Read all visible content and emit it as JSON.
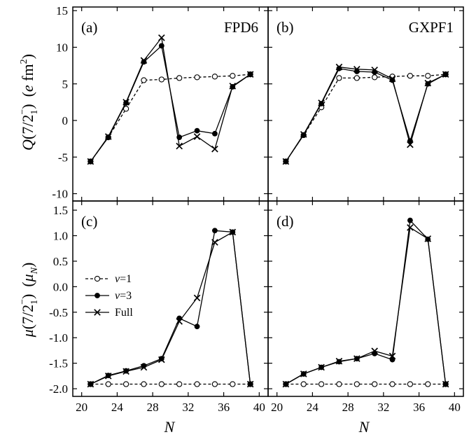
{
  "x_axis_label": "N",
  "x_ticks": [
    "20",
    "24",
    "28",
    "32",
    "36",
    "40"
  ],
  "legend": {
    "v1_var": "v",
    "v1_val": "=1",
    "v3_var": "v",
    "v3_val": "=3",
    "full": "Full"
  },
  "top_ylabel": {
    "sym": "Q",
    "paren_open": "(7/2",
    "sub": "1",
    "sup": "−",
    "paren_close": ")",
    "unit_open": "(",
    "unit_e": "e",
    "unit_fm": " fm",
    "unit_sq": "2",
    "unit_close": ")"
  },
  "bottom_ylabel": {
    "sym": "μ",
    "paren_open": "(7/2",
    "sub": "1",
    "sup": "−",
    "paren_close": ")",
    "unit_open": "(",
    "unit_mu": "μ",
    "unit_N": "N",
    "unit_close": ")"
  },
  "chart_data": [
    {
      "type": "line",
      "panel": "(a)",
      "model": "FPD6",
      "xlim": [
        19,
        41
      ],
      "ylim": [
        -11,
        15.5
      ],
      "y_ticks": [
        "15",
        "10",
        "5",
        "0",
        "-5",
        "-10"
      ],
      "series": [
        {
          "name": "v=1",
          "x": [
            21,
            23,
            25,
            27,
            29,
            31,
            33,
            35,
            37,
            39
          ],
          "values": [
            -5.6,
            -2.3,
            1.6,
            5.5,
            5.6,
            5.8,
            5.9,
            6.0,
            6.1,
            6.3
          ]
        },
        {
          "name": "v=3",
          "x": [
            21,
            23,
            25,
            27,
            29,
            31,
            33,
            35,
            37,
            39
          ],
          "values": [
            -5.6,
            -2.3,
            2.4,
            8.0,
            10.2,
            -2.3,
            -1.4,
            -1.8,
            4.6,
            6.3
          ]
        },
        {
          "name": "Full",
          "x": [
            21,
            23,
            25,
            27,
            29,
            31,
            33,
            35,
            37,
            39
          ],
          "values": [
            -5.6,
            -2.2,
            2.5,
            8.2,
            11.3,
            -3.5,
            -2.2,
            -3.9,
            4.7,
            6.3
          ]
        }
      ]
    },
    {
      "type": "line",
      "panel": "(b)",
      "model": "GXPF1",
      "xlim": [
        19,
        41
      ],
      "ylim": [
        -11,
        15.5
      ],
      "series": [
        {
          "name": "v=1",
          "x": [
            21,
            23,
            25,
            27,
            29,
            31,
            33,
            35,
            37,
            39
          ],
          "values": [
            -5.6,
            -2.0,
            1.8,
            5.8,
            5.8,
            5.9,
            6.0,
            6.1,
            6.1,
            6.3
          ]
        },
        {
          "name": "v=3",
          "x": [
            21,
            23,
            25,
            27,
            29,
            31,
            33,
            35,
            37,
            39
          ],
          "values": [
            -5.6,
            -2.0,
            2.3,
            7.1,
            6.7,
            6.6,
            5.5,
            -2.8,
            5.0,
            6.3
          ]
        },
        {
          "name": "Full",
          "x": [
            21,
            23,
            25,
            27,
            29,
            31,
            33,
            35,
            37,
            39
          ],
          "values": [
            -5.6,
            -1.9,
            2.4,
            7.3,
            7.0,
            6.9,
            5.7,
            -3.3,
            5.1,
            6.3
          ]
        }
      ]
    },
    {
      "type": "line",
      "panel": "(c)",
      "xlim": [
        19,
        41
      ],
      "ylim": [
        -2.15,
        1.68
      ],
      "y_ticks": [
        "1.5",
        "1.0",
        "0.5",
        "0.0",
        "-0.5",
        "-1.0",
        "-1.5",
        "-2.0"
      ],
      "series": [
        {
          "name": "v=1",
          "x": [
            21,
            23,
            25,
            27,
            29,
            31,
            33,
            35,
            37,
            39
          ],
          "values": [
            -1.91,
            -1.91,
            -1.91,
            -1.91,
            -1.91,
            -1.91,
            -1.91,
            -1.91,
            -1.91,
            -1.91
          ]
        },
        {
          "name": "v=3",
          "x": [
            21,
            23,
            25,
            27,
            29,
            31,
            33,
            35,
            37,
            39
          ],
          "values": [
            -1.91,
            -1.74,
            -1.65,
            -1.55,
            -1.41,
            -0.62,
            -0.78,
            1.1,
            1.07,
            -1.91
          ]
        },
        {
          "name": "Full",
          "x": [
            21,
            23,
            25,
            27,
            29,
            31,
            33,
            35,
            37,
            39
          ],
          "values": [
            -1.91,
            -1.75,
            -1.66,
            -1.58,
            -1.43,
            -0.68,
            -0.22,
            0.87,
            1.07,
            -1.91
          ]
        }
      ]
    },
    {
      "type": "line",
      "panel": "(d)",
      "xlim": [
        19,
        41
      ],
      "ylim": [
        -2.15,
        1.68
      ],
      "series": [
        {
          "name": "v=1",
          "x": [
            21,
            23,
            25,
            27,
            29,
            31,
            33,
            35,
            37,
            39
          ],
          "values": [
            -1.91,
            -1.91,
            -1.91,
            -1.91,
            -1.91,
            -1.91,
            -1.91,
            -1.91,
            -1.91,
            -1.91
          ]
        },
        {
          "name": "v=3",
          "x": [
            21,
            23,
            25,
            27,
            29,
            31,
            33,
            35,
            37,
            39
          ],
          "values": [
            -1.91,
            -1.71,
            -1.58,
            -1.47,
            -1.41,
            -1.31,
            -1.43,
            1.3,
            0.93,
            -1.91
          ]
        },
        {
          "name": "Full",
          "x": [
            21,
            23,
            25,
            27,
            29,
            31,
            33,
            35,
            37,
            39
          ],
          "values": [
            -1.91,
            -1.71,
            -1.58,
            -1.46,
            -1.41,
            -1.26,
            -1.36,
            1.16,
            0.94,
            -1.91
          ]
        }
      ]
    }
  ]
}
